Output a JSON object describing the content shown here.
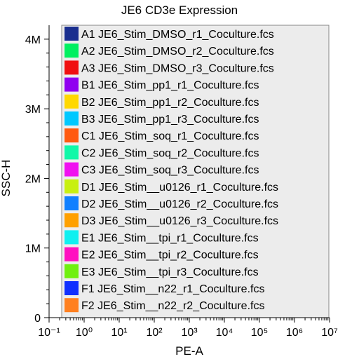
{
  "chart_data": {
    "type": "scatter",
    "title": "JE6 CD3e Expression",
    "xlabel": "PE-A",
    "ylabel": "SSC-H",
    "x_scale": "log",
    "xlim": [
      0.1,
      10000000
    ],
    "ylim": [
      0,
      4200000
    ],
    "grid": false,
    "legend_placement": "overlay-full-plot",
    "x_ticks": [
      {
        "value": 0.1,
        "label": "10⁻¹"
      },
      {
        "value": 1,
        "label": "10⁰"
      },
      {
        "value": 10,
        "label": "10¹"
      },
      {
        "value": 100,
        "label": "10²"
      },
      {
        "value": 1000,
        "label": "10³"
      },
      {
        "value": 10000,
        "label": "10⁴"
      },
      {
        "value": 100000,
        "label": "10⁵"
      },
      {
        "value": 1000000,
        "label": "10⁶"
      },
      {
        "value": 10000000,
        "label": "10⁷"
      }
    ],
    "y_ticks": [
      {
        "value": 0,
        "label": "0"
      },
      {
        "value": 1000000,
        "label": "1M"
      },
      {
        "value": 2000000,
        "label": "2M"
      },
      {
        "value": 3000000,
        "label": "3M"
      },
      {
        "value": 4000000,
        "label": "4M"
      }
    ],
    "series": [
      {
        "name": "A1 JE6_Stim_DMSO_r1_Coculture.fcs",
        "color": "#1a2f8f"
      },
      {
        "name": "A2 JE6_Stim_DMSO_r2_Coculture.fcs",
        "color": "#00f060"
      },
      {
        "name": "A3 JE6_Stim_DMSO_r3_Coculture.fcs",
        "color": "#f01010"
      },
      {
        "name": "B1 JE6_Stim_pp1_r1_Coculture.fcs",
        "color": "#9000f0"
      },
      {
        "name": "B2 JE6_Stim_pp1_r2_Coculture.fcs",
        "color": "#ffd800"
      },
      {
        "name": "B3 JE6_Stim_pp1_r3_Coculture.fcs",
        "color": "#00c8ff"
      },
      {
        "name": "C1 JE6_Stim_soq_r1_Coculture.fcs",
        "color": "#ff5a10"
      },
      {
        "name": "C2 JE6_Stim_soq_r2_Coculture.fcs",
        "color": "#10f8a8"
      },
      {
        "name": "C3 JE6_Stim_soq_r3_Coculture.fcs",
        "color": "#f010f0"
      },
      {
        "name": "D1 JE6_Stim__u0126_r1_Coculture.fcs",
        "color": "#c8f010"
      },
      {
        "name": "D2 JE6_Stim__u0126_r2_Coculture.fcs",
        "color": "#1080ff"
      },
      {
        "name": "D3 JE6_Stim__u0126_r3_Coculture.fcs",
        "color": "#ffa000"
      },
      {
        "name": "E1 JE6_Stim__tpi_r1_Coculture.fcs",
        "color": "#10f0f0"
      },
      {
        "name": "E2 JE6_Stim__tpi_r2_Coculture.fcs",
        "color": "#ff10c0"
      },
      {
        "name": "E3 JE6_Stim__tpi_r3_Coculture.fcs",
        "color": "#70f010"
      },
      {
        "name": "F1 JE6_Stim__n22_r1_Coculture.fcs",
        "color": "#1030ff"
      },
      {
        "name": "F2 JE6_Stim__n22_r2_Coculture.fcs",
        "color": "#ff8020"
      }
    ]
  }
}
